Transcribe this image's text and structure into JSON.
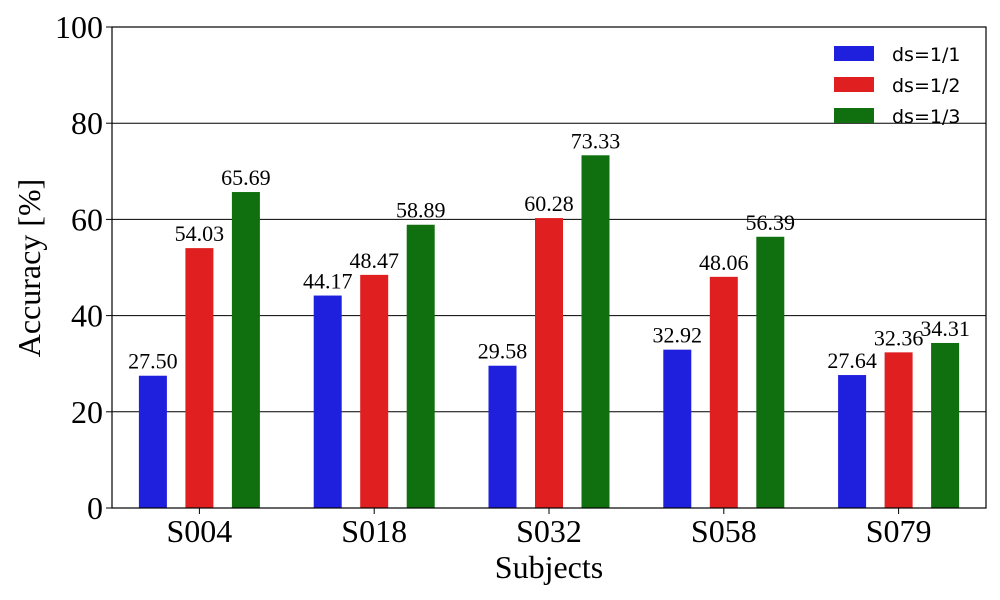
{
  "chart_data": {
    "type": "bar",
    "categories": [
      "S004",
      "S018",
      "S032",
      "S058",
      "S079"
    ],
    "series": [
      {
        "name": "ds=1/1",
        "color": "#1f1fde",
        "values": [
          27.5,
          44.17,
          29.58,
          32.92,
          27.64
        ],
        "labels": [
          "27.50",
          "44.17",
          "29.58",
          "32.92",
          "27.64"
        ]
      },
      {
        "name": "ds=1/2",
        "color": "#e02020",
        "values": [
          54.03,
          48.47,
          60.28,
          48.06,
          32.36
        ],
        "labels": [
          "54.03",
          "48.47",
          "60.28",
          "48.06",
          "32.36"
        ]
      },
      {
        "name": "ds=1/3",
        "color": "#107010",
        "values": [
          65.69,
          58.89,
          73.33,
          56.39,
          34.31
        ],
        "labels": [
          "65.69",
          "58.89",
          "73.33",
          "56.39",
          "34.31"
        ]
      }
    ],
    "xlabel": "Subjects",
    "ylabel": "Accuracy [%]",
    "ylim": [
      0,
      100
    ],
    "yticks": [
      "0",
      "20",
      "40",
      "60",
      "80",
      "100"
    ],
    "grid": "horizontal",
    "legend_position": "top-right"
  }
}
